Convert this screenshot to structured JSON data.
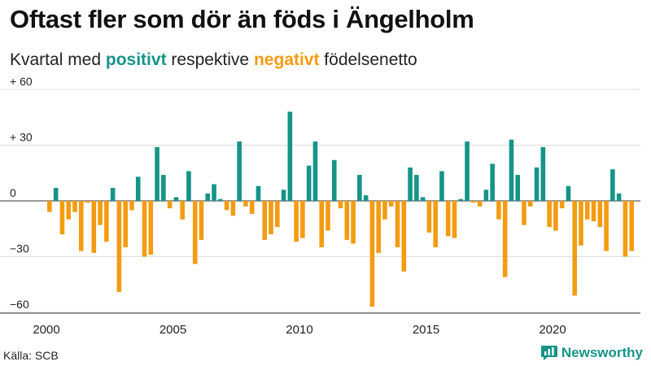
{
  "title": "Oftast fler som dör än föds i Ängelholm",
  "subtitle": {
    "prefix": "Kvartal med ",
    "positive_word": "positivt",
    "middle": " respektive ",
    "negative_word": "negativt",
    "suffix": " födelsenetto"
  },
  "source": "Källa: SCB",
  "brand": {
    "name": "Newsworthy",
    "icon": "bar-chart-icon"
  },
  "colors": {
    "positive": "#159488",
    "negative": "#f39c12",
    "grid": "#dddddd",
    "axis": "#333333"
  },
  "chart_data": {
    "type": "bar",
    "title": "Oftast fler som dör än föds i Ängelholm",
    "xlabel": "",
    "ylabel": "",
    "ylim": [
      -60,
      60
    ],
    "yticks": [
      60,
      30,
      0,
      -30,
      -60
    ],
    "ytick_labels": [
      "+ 60",
      "+ 30",
      "0",
      "−30",
      "−60"
    ],
    "x_start": 2000,
    "xticks": [
      2000,
      2005,
      2010,
      2015,
      2020
    ],
    "xtick_labels": [
      "2000",
      "2005",
      "2010",
      "2015",
      "2020"
    ],
    "quarters_per_year": 4,
    "values": [
      -6,
      7,
      -18,
      -10,
      -6,
      -27,
      -1,
      -28,
      -13,
      -22,
      7,
      -49,
      -25,
      -5,
      13,
      -30,
      -29,
      29,
      14,
      -4,
      2,
      -10,
      16,
      -34,
      -21,
      4,
      9,
      1,
      -5,
      -8,
      32,
      -3,
      -7,
      8,
      -21,
      -18,
      -14,
      6,
      48,
      -22,
      -20,
      19,
      32,
      -25,
      -16,
      22,
      -4,
      -21,
      -23,
      14,
      3,
      -57,
      -28,
      -10,
      -3,
      -25,
      -38,
      18,
      14,
      2,
      -17,
      -25,
      16,
      -19,
      -20,
      1,
      32,
      -1,
      -3,
      6,
      20,
      -10,
      -41,
      33,
      14,
      -13,
      -3,
      18,
      29,
      -14,
      -16,
      -4,
      8,
      -51,
      -24,
      -10,
      -11,
      -14,
      -27,
      17,
      4,
      -30,
      -27
    ]
  }
}
